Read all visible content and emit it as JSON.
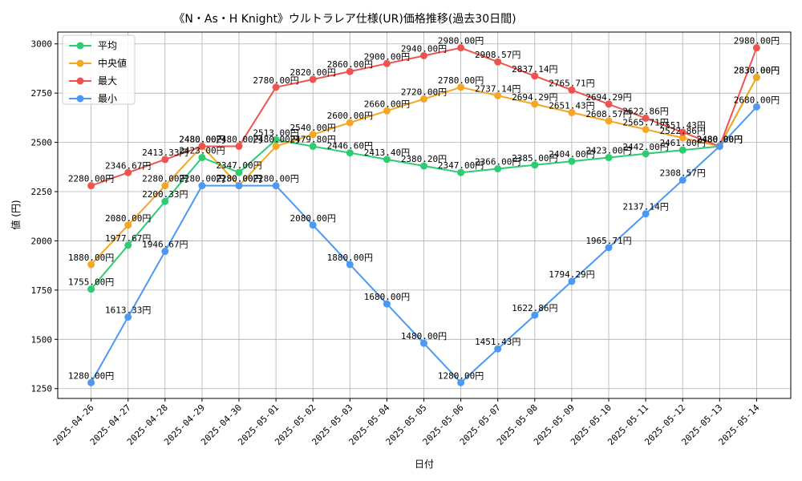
{
  "chart_data": {
    "type": "line",
    "title": "《N・As・H Knight》ウルトラレア仕様(UR)価格推移(過去30日間)",
    "xlabel": "日付",
    "ylabel": "値 (円)",
    "ylim": [
      1200,
      3060
    ],
    "yticks": [
      1250,
      1500,
      1750,
      2000,
      2250,
      2500,
      2750,
      3000
    ],
    "grid": true,
    "legend_position": "top-left",
    "categories": [
      "2025-04-26",
      "2025-04-27",
      "2025-04-28",
      "2025-04-29",
      "2025-04-30",
      "2025-05-01",
      "2025-05-02",
      "2025-05-03",
      "2025-05-04",
      "2025-05-05",
      "2025-05-06",
      "2025-05-07",
      "2025-05-08",
      "2025-05-09",
      "2025-05-10",
      "2025-05-11",
      "2025-05-12",
      "2025-05-13",
      "2025-05-14"
    ],
    "series": [
      {
        "name": "平均",
        "color": "#2ecc71",
        "values": [
          1755.0,
          1977.67,
          2200.33,
          2423.0,
          2347.0,
          2513.0,
          2479.8,
          2446.6,
          2413.4,
          2380.2,
          2347.0,
          2366.0,
          2385.0,
          2404.0,
          2423.0,
          2442.0,
          2461.0,
          2480.0,
          2830.0
        ],
        "labels": [
          "1755.00円",
          "1977.67円",
          "2200.33円",
          "2423.00円",
          "2347.00円",
          "2513.00円",
          "2479.80円",
          "2446.60円",
          "2413.40円",
          "2380.20円",
          "2347.00円",
          "2366.00円",
          "2385.00円",
          "2404.00円",
          "2423.00円",
          "2442.00円",
          "2461.00円",
          "2480.00円",
          "2830.00円"
        ]
      },
      {
        "name": "中央値",
        "color": "#f5a623",
        "values": [
          1880.0,
          2080.0,
          2280.0,
          2480.0,
          2280.0,
          2480.0,
          2540.0,
          2600.0,
          2660.0,
          2720.0,
          2780.0,
          2737.14,
          2694.29,
          2651.43,
          2608.57,
          2565.71,
          2522.86,
          2480.0,
          2830.0
        ],
        "labels": [
          "1880.00円",
          "2080.00円",
          "2280.00円",
          "2480.00円",
          "2280.00円",
          "2480.00円",
          "2540.00円",
          "2600.00円",
          "2660.00円",
          "2720.00円",
          "2780.00円",
          "2737.14円",
          "2694.29円",
          "2651.43円",
          "2608.57円",
          "2565.71円",
          "2522.86円",
          "2480.00円",
          "2830.00円"
        ]
      },
      {
        "name": "最大",
        "color": "#ef5350",
        "values": [
          2280.0,
          2346.67,
          2413.33,
          2480.0,
          2480.0,
          2780.0,
          2820.0,
          2860.0,
          2900.0,
          2940.0,
          2980.0,
          2908.57,
          2837.14,
          2765.71,
          2694.29,
          2622.86,
          2551.43,
          2480.0,
          2980.0
        ],
        "labels": [
          "2280.00円",
          "2346.67円",
          "2413.33円",
          "2480.00円",
          "2480.00円",
          "2780.00円",
          "2820.00円",
          "2860.00円",
          "2900.00円",
          "2940.00円",
          "2980.00円",
          "2908.57円",
          "2837.14円",
          "2765.71円",
          "2694.29円",
          "2622.86円",
          "2551.43円",
          "2480.00円",
          "2980.00円"
        ]
      },
      {
        "name": "最小",
        "color": "#4a9af5",
        "values": [
          1280.0,
          1613.33,
          1946.67,
          2280.0,
          2280.0,
          2280.0,
          2080.0,
          1880.0,
          1680.0,
          1480.0,
          1280.0,
          1451.43,
          1622.86,
          1794.29,
          1965.71,
          2137.14,
          2308.57,
          2480.0,
          2680.0
        ],
        "labels": [
          "1280.00円",
          "1613.33円",
          "1946.67円",
          "2280.00円",
          "2280.00円",
          "2280.00円",
          "2080.00円",
          "1880.00円",
          "1680.00円",
          "1480.00円",
          "1280.00円",
          "1451.43円",
          "1622.86円",
          "1794.29円",
          "1965.71円",
          "2137.14円",
          "2308.57円",
          "2480.00円",
          "2680.00円"
        ]
      }
    ]
  }
}
